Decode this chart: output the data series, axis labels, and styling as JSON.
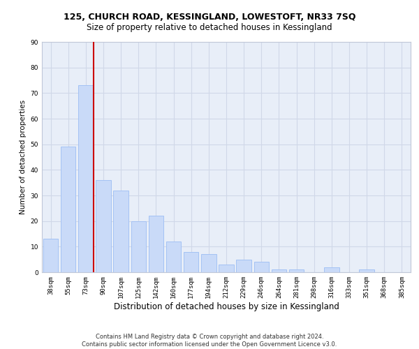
{
  "title": "125, CHURCH ROAD, KESSINGLAND, LOWESTOFT, NR33 7SQ",
  "subtitle": "Size of property relative to detached houses in Kessingland",
  "xlabel": "Distribution of detached houses by size in Kessingland",
  "ylabel": "Number of detached properties",
  "categories": [
    "38sqm",
    "55sqm",
    "73sqm",
    "90sqm",
    "107sqm",
    "125sqm",
    "142sqm",
    "160sqm",
    "177sqm",
    "194sqm",
    "212sqm",
    "229sqm",
    "246sqm",
    "264sqm",
    "281sqm",
    "298sqm",
    "316sqm",
    "333sqm",
    "351sqm",
    "368sqm",
    "385sqm"
  ],
  "values": [
    13,
    49,
    73,
    36,
    32,
    20,
    22,
    12,
    8,
    7,
    3,
    5,
    4,
    1,
    1,
    0,
    2,
    0,
    1,
    0,
    0
  ],
  "bar_color": "#c9daf8",
  "bar_edge_color": "#a4c2f4",
  "vline_color": "#cc0000",
  "annotation_box_color": "white",
  "annotation_box_edge_color": "#cc0000",
  "ylim": [
    0,
    90
  ],
  "yticks": [
    0,
    10,
    20,
    30,
    40,
    50,
    60,
    70,
    80,
    90
  ],
  "grid_color": "#d0d8e8",
  "background_color": "#e8eef8",
  "footer": "Contains HM Land Registry data © Crown copyright and database right 2024.\nContains public sector information licensed under the Open Government Licence v3.0.",
  "title_fontsize": 9,
  "subtitle_fontsize": 8.5,
  "xlabel_fontsize": 8.5,
  "ylabel_fontsize": 7.5,
  "tick_fontsize": 6.5,
  "annotation_fontsize": 7.5,
  "footer_fontsize": 6
}
